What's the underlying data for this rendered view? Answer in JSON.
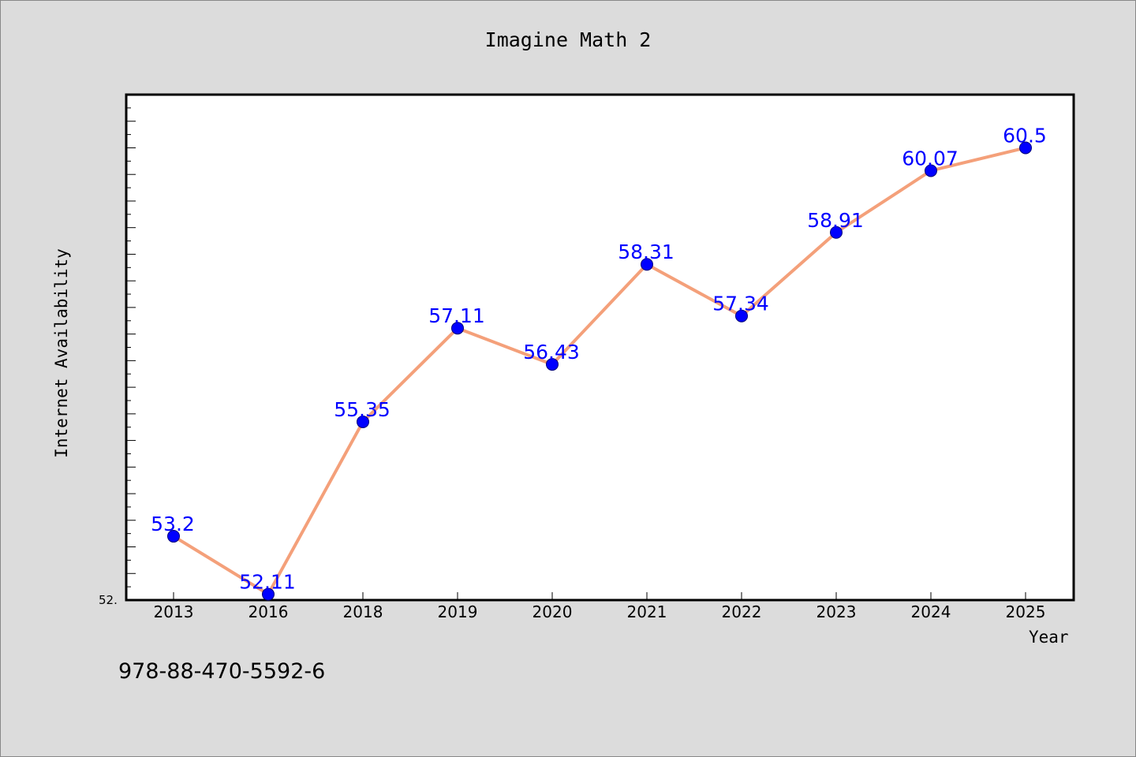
{
  "chart_data": {
    "type": "line",
    "title": "Imagine Math 2",
    "xlabel": "Year",
    "ylabel": "Internet Availability",
    "categories": [
      "2013",
      "2016",
      "2018",
      "2019",
      "2020",
      "2021",
      "2022",
      "2023",
      "2024",
      "2025"
    ],
    "series": [
      {
        "values": [
          53.2,
          52.11,
          55.35,
          57.11,
          56.43,
          58.31,
          57.34,
          58.91,
          60.07,
          60.5
        ],
        "data_labels": [
          "53.2",
          "52.11",
          "55.35",
          "57.11",
          "56.43",
          "58.31",
          "57.34",
          "58.91",
          "60.07",
          "60.5"
        ],
        "line_color": "#f4a07a",
        "marker_color": "#0000ff"
      }
    ],
    "ylim": [
      52.0,
      61.5
    ],
    "y_min_label": "52.",
    "grid": false,
    "label_color": "#0000ff"
  },
  "footer": {
    "isbn": "978-88-470-5592-6"
  }
}
